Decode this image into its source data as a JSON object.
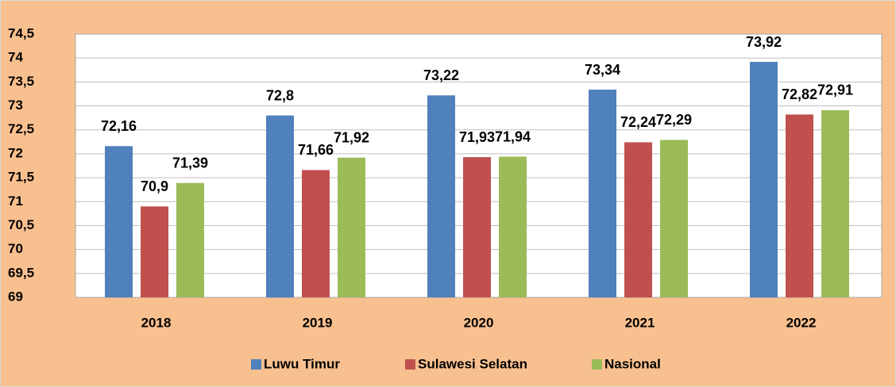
{
  "chart_data": {
    "type": "bar",
    "categories": [
      "2018",
      "2019",
      "2020",
      "2021",
      "2022"
    ],
    "series": [
      {
        "name": "Luwu Timur",
        "color": "#4f81bd",
        "values": [
          72.16,
          72.8,
          73.22,
          73.34,
          73.92
        ],
        "value_labels": [
          "72,16",
          "72,8",
          "73,22",
          "73,34",
          "73,92"
        ]
      },
      {
        "name": "Sulawesi Selatan",
        "color": "#c0504d",
        "values": [
          70.9,
          71.66,
          71.93,
          72.24,
          72.82
        ],
        "value_labels": [
          "70,9",
          "71,66",
          "71,93",
          "72,24",
          "72,82"
        ]
      },
      {
        "name": "Nasional",
        "color": "#9bbb59",
        "values": [
          71.39,
          71.92,
          71.94,
          72.29,
          72.91
        ],
        "value_labels": [
          "71,39",
          "71,92",
          "71,94",
          "72,29",
          "72,91"
        ]
      }
    ],
    "ylim": [
      69,
      74.5
    ],
    "yticks": [
      69,
      {
        "value": 69.5,
        "label": "69,5"
      },
      70,
      {
        "value": 70.5,
        "label": "70,5"
      },
      71,
      {
        "value": 71.5,
        "label": "71,5"
      },
      72,
      {
        "value": 72.5,
        "label": "72,5"
      },
      73,
      {
        "value": 73.5,
        "label": "73,5"
      },
      74,
      {
        "value": 74.5,
        "label": "74,5"
      }
    ],
    "grid": true,
    "legend": "bottom"
  }
}
